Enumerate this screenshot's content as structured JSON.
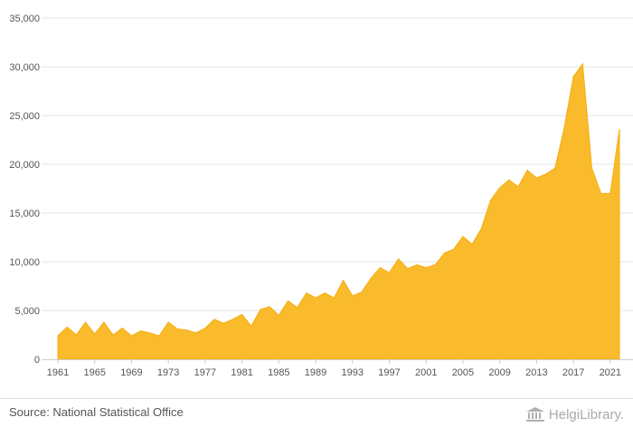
{
  "chart_data": {
    "type": "area",
    "x": [
      1961,
      1962,
      1963,
      1964,
      1965,
      1966,
      1967,
      1968,
      1969,
      1970,
      1971,
      1972,
      1973,
      1974,
      1975,
      1976,
      1977,
      1978,
      1979,
      1980,
      1981,
      1982,
      1983,
      1984,
      1985,
      1986,
      1987,
      1988,
      1989,
      1990,
      1991,
      1992,
      1993,
      1994,
      1995,
      1996,
      1997,
      1998,
      1999,
      2000,
      2001,
      2002,
      2003,
      2004,
      2005,
      2006,
      2007,
      2008,
      2009,
      2010,
      2011,
      2012,
      2013,
      2014,
      2015,
      2016,
      2017,
      2018,
      2019,
      2020,
      2021,
      2022
    ],
    "series": [
      {
        "values": [
          2400,
          3300,
          2500,
          3800,
          2600,
          3800,
          2500,
          3200,
          2400,
          2900,
          2700,
          2400,
          3800,
          3100,
          3000,
          2700,
          3200,
          4100,
          3700,
          4100,
          4600,
          3400,
          5100,
          5400,
          4500,
          6000,
          5300,
          6800,
          6300,
          6800,
          6300,
          8100,
          6500,
          6900,
          8300,
          9400,
          8900,
          10300,
          9300,
          9700,
          9400,
          9700,
          10900,
          11300,
          12600,
          11800,
          13400,
          16300,
          17600,
          18400,
          17700,
          19400,
          18600,
          19000,
          19600,
          23700,
          29000,
          30300,
          19600,
          17000,
          17000,
          23600
        ]
      }
    ],
    "xticks": [
      1961,
      1965,
      1969,
      1973,
      1977,
      1981,
      1985,
      1989,
      1993,
      1997,
      2001,
      2005,
      2009,
      2013,
      2017,
      2021
    ],
    "yticks": [
      0,
      5000,
      10000,
      15000,
      20000,
      25000,
      30000,
      35000
    ],
    "ylim": [
      0,
      35000
    ],
    "xlim": [
      1961,
      2022
    ],
    "grid": true,
    "legend": "none",
    "color": "#f9bb2b"
  },
  "footer": {
    "source": "Source: National Statistical Office",
    "brand": "HelgiLibrary."
  }
}
